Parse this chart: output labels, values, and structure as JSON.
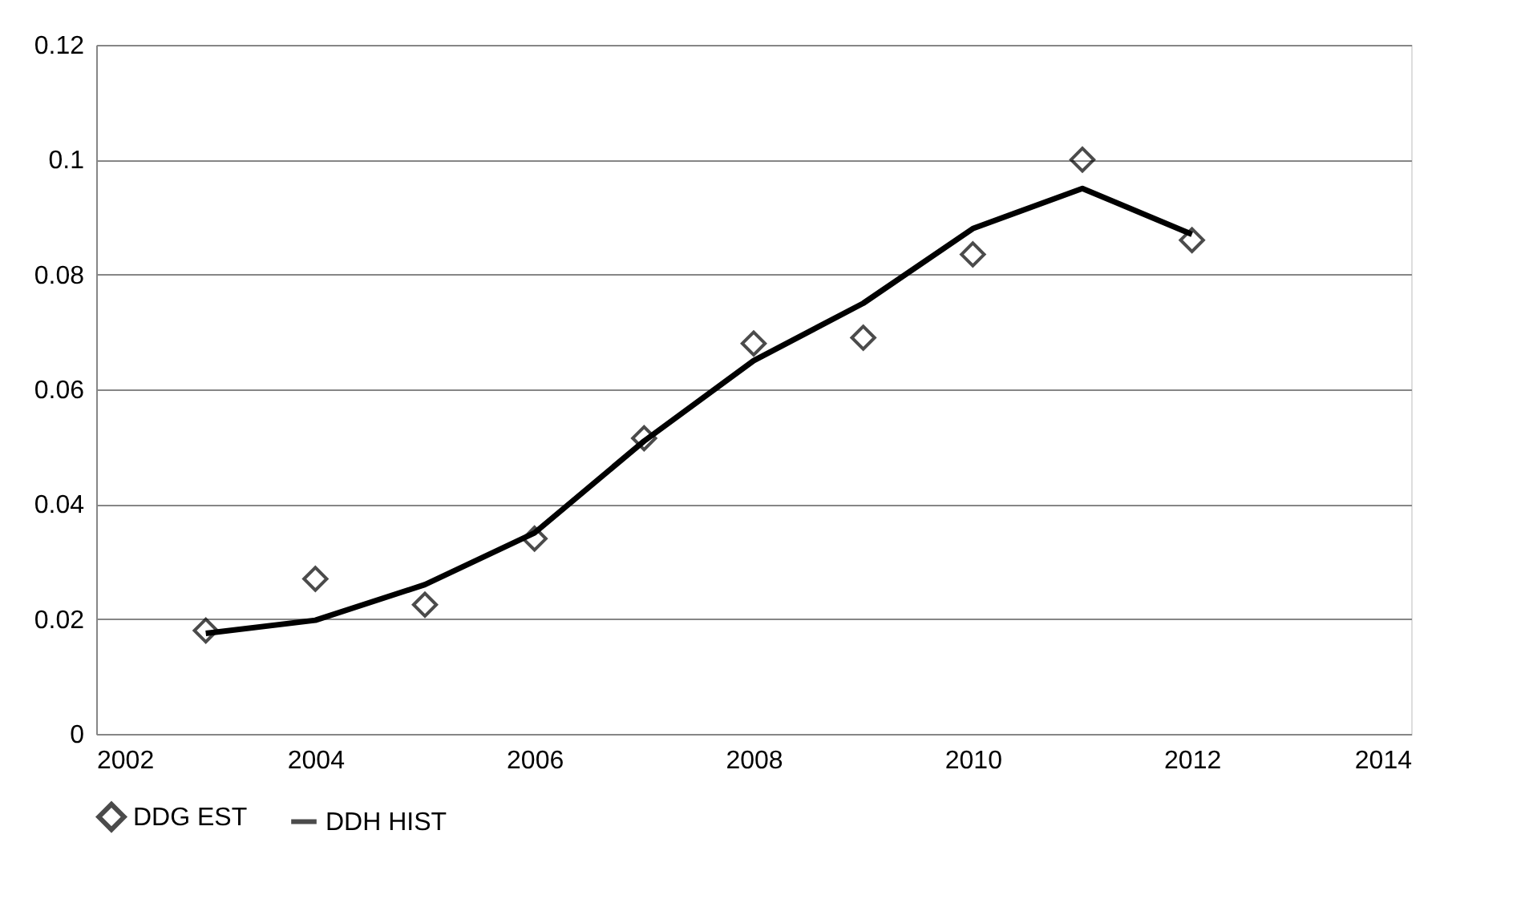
{
  "chart_data": {
    "type": "line",
    "x": [
      2003,
      2004,
      2005,
      2006,
      2007,
      2008,
      2009,
      2010,
      2011,
      2012
    ],
    "series": [
      {
        "name": "DDG EST",
        "type": "scatter",
        "marker": "diamond",
        "color": "#000000",
        "values": [
          0.018,
          0.027,
          0.0225,
          0.034,
          0.0515,
          0.068,
          0.069,
          0.0835,
          0.1,
          0.086
        ]
      },
      {
        "name": "DDH HIST",
        "marker": "none",
        "line_style": "solid",
        "color": "#000000",
        "values": [
          0.0175,
          0.0198,
          0.026,
          0.035,
          0.051,
          0.065,
          0.075,
          0.088,
          0.095,
          0.087
        ]
      }
    ],
    "xlim": [
      2002,
      2014
    ],
    "xticks": [
      2002,
      2004,
      2006,
      2008,
      2010,
      2012,
      2014
    ],
    "ylim": [
      0,
      0.12
    ],
    "yticks": [
      0,
      0.02,
      0.04,
      0.06,
      0.08,
      0.1,
      0.12
    ],
    "grid": "y",
    "legend": "bottom"
  }
}
